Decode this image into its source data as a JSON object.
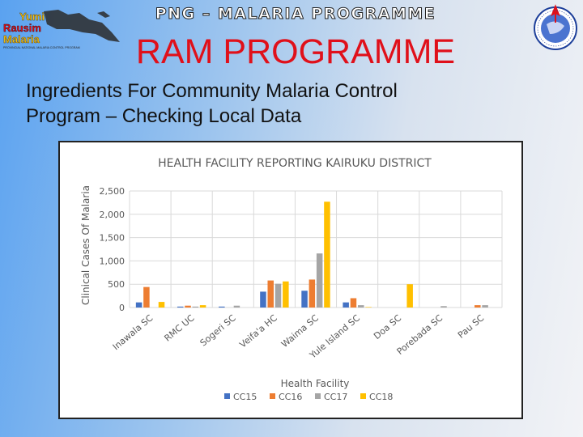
{
  "header": {
    "programme_line": "PNG – MALARIA PROGRAMME",
    "title": "RAM PROGRAMME",
    "subtitle_line1": "Ingredients For Community Malaria Control",
    "subtitle_line2": "Program – Checking Local Data"
  },
  "logo_left": {
    "text_line1": "Yumi",
    "text_line2": "Rausim",
    "text_line3": "Malaria",
    "tagline": "PROVINCIAL NATIONAL MALARIA CONTROL PROGRAM"
  },
  "colors": {
    "cc15": "#4472C4",
    "cc16": "#ED7D31",
    "cc17": "#A5A5A5",
    "cc18": "#FFC000",
    "title_red": "#e0101a"
  },
  "chart_data": {
    "type": "bar",
    "title": "HEALTH FACILITY REPORTING KAIRUKU DISTRICT",
    "xlabel": "Health Facility",
    "ylabel": "Clinical Cases Of Malaria",
    "ylim": [
      0,
      2500
    ],
    "yticks": [
      "0",
      "500",
      "1,000",
      "1,500",
      "2,000",
      "2,500"
    ],
    "grid": "both",
    "legend_position": "bottom",
    "categories": [
      "Inawala SC",
      "RMC UC",
      "Sogeri SC",
      "Veifa'a HC",
      "Waima SC",
      "Yule Island SC",
      "Doa SC",
      "Porebada SC",
      "Pau SC"
    ],
    "series": [
      {
        "name": "CC15",
        "values": [
          110,
          20,
          20,
          340,
          360,
          110,
          0,
          0,
          0
        ]
      },
      {
        "name": "CC16",
        "values": [
          440,
          40,
          0,
          580,
          600,
          200,
          0,
          0,
          50
        ]
      },
      {
        "name": "CC17",
        "values": [
          0,
          20,
          40,
          510,
          1160,
          50,
          0,
          30,
          50
        ]
      },
      {
        "name": "CC18",
        "values": [
          120,
          50,
          0,
          560,
          2270,
          10,
          500,
          0,
          0
        ]
      }
    ]
  }
}
